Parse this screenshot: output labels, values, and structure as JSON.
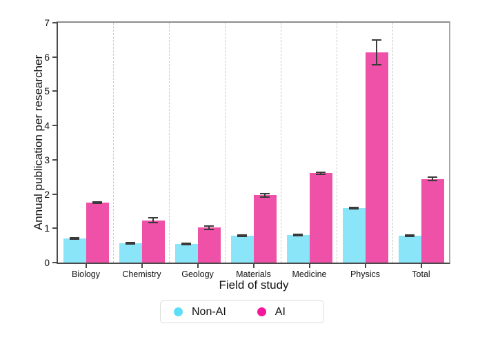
{
  "chart_data": {
    "type": "bar",
    "title": "",
    "xlabel": "Field of study",
    "ylabel": "Annual publication per researcher",
    "categories": [
      "Biology",
      "Chemistry",
      "Geology",
      "Materials",
      "Medicine",
      "Physics",
      "Total"
    ],
    "series": [
      {
        "name": "Non-AI",
        "bar_color": "#8be5f8",
        "legend_marker_color": "#5ddef7",
        "values": [
          0.7,
          0.57,
          0.54,
          0.79,
          0.8,
          1.58,
          0.78
        ],
        "errors": [
          0.02,
          0.02,
          0.02,
          0.02,
          0.02,
          0.02,
          0.015
        ]
      },
      {
        "name": "AI",
        "bar_color": "#ee51a7",
        "legend_marker_color": "#f2189b",
        "values": [
          1.75,
          1.23,
          1.02,
          1.97,
          2.61,
          6.13,
          2.44
        ],
        "errors": [
          0.03,
          0.07,
          0.05,
          0.05,
          0.03,
          0.36,
          0.045
        ]
      }
    ],
    "ylim": [
      0,
      7
    ],
    "yticks": [
      "0",
      "1",
      "2",
      "3",
      "4",
      "5",
      "6",
      "7"
    ],
    "grid": "dashed vertical separators between category groups",
    "legend_position": "bottom-center below x-axis label",
    "error_bar_color": "#3a3a3a"
  }
}
